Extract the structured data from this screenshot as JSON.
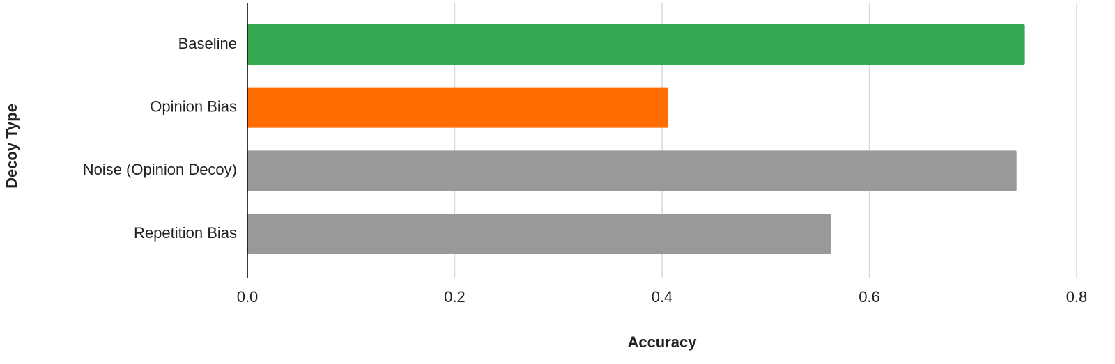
{
  "chart_data": {
    "type": "bar",
    "orientation": "horizontal",
    "x_label": "Accuracy",
    "y_label": "Decoy Type",
    "categories": [
      "Baseline",
      "Opinion Bias",
      "Noise (Opinion Decoy)",
      "Repetition Bias"
    ],
    "values": [
      0.75,
      0.406,
      0.742,
      0.563
    ],
    "colors": [
      "#34a853",
      "#ff6d01",
      "#999999",
      "#999999"
    ],
    "xlim": [
      0,
      0.8
    ],
    "xticks": [
      {
        "value": 0,
        "label": "0.0"
      },
      0.2,
      0.4,
      0.6,
      0.8
    ],
    "grid": true
  }
}
